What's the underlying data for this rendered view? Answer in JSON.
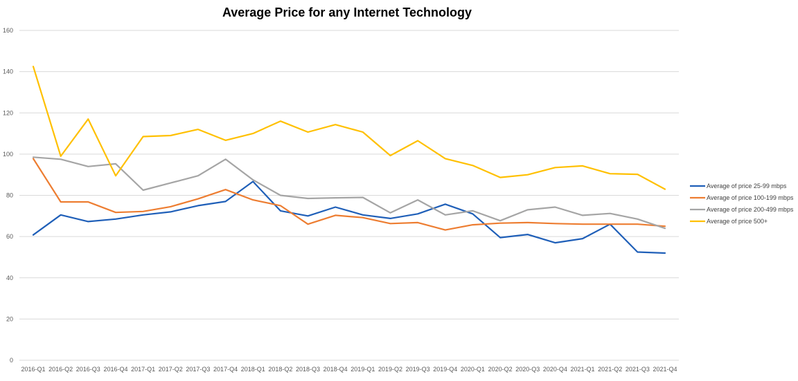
{
  "chart_data": {
    "type": "line",
    "title": "Average Price for any Internet Technology",
    "xlabel": "",
    "ylabel": "",
    "ylim": [
      0,
      160
    ],
    "yticks": [
      0,
      20,
      40,
      60,
      80,
      100,
      120,
      140,
      160
    ],
    "grid": true,
    "legend_position": "right",
    "categories": [
      "2016-Q1",
      "2016-Q2",
      "2016-Q3",
      "2016-Q4",
      "2017-Q1",
      "2017-Q2",
      "2017-Q3",
      "2017-Q4",
      "2018-Q1",
      "2018-Q2",
      "2018-Q3",
      "2018-Q4",
      "2019-Q1",
      "2019-Q2",
      "2019-Q3",
      "2019-Q4",
      "2020-Q1",
      "2020-Q2",
      "2020-Q3",
      "2020-Q4",
      "2021-Q1",
      "2021-Q2",
      "2021-Q3",
      "2021-Q4"
    ],
    "series": [
      {
        "name": "Average of price 25-99 mbps",
        "color": "#1f5fb8",
        "values": [
          60.8,
          70.5,
          67.3,
          68.5,
          70.5,
          72,
          75,
          77,
          86.7,
          72.5,
          70,
          74.3,
          70.5,
          68.8,
          71,
          75.7,
          71,
          59.5,
          61,
          57,
          59,
          66,
          52.5,
          52
        ]
      },
      {
        "name": "Average of price 100-199 mbps",
        "color": "#ed7d31",
        "values": [
          97.8,
          76.8,
          76.8,
          71.7,
          72.2,
          74.5,
          78.3,
          82.8,
          77.8,
          75,
          66,
          70.3,
          69.2,
          66.3,
          66.8,
          63.2,
          65.7,
          66.5,
          66.8,
          66.3,
          66,
          66,
          66,
          65
        ]
      },
      {
        "name": "Average of price 200-499 mbps",
        "color": "#a5a5a5",
        "values": [
          98.5,
          97.5,
          94,
          95.3,
          82.5,
          86,
          89.5,
          97.5,
          87.5,
          80,
          78.5,
          78.8,
          79,
          71.5,
          77.8,
          70.5,
          72.5,
          67.7,
          73,
          74.3,
          70.3,
          71.2,
          68.5,
          64
        ]
      },
      {
        "name": "Average of price 500+",
        "color": "#ffc000",
        "values": [
          142.5,
          99,
          117,
          89.5,
          108.5,
          109,
          112,
          106.7,
          110,
          116,
          110.7,
          114.3,
          110.7,
          99.3,
          106.5,
          97.8,
          94.5,
          88.7,
          90,
          93.5,
          94.3,
          90.5,
          90.2,
          83
        ]
      }
    ]
  }
}
